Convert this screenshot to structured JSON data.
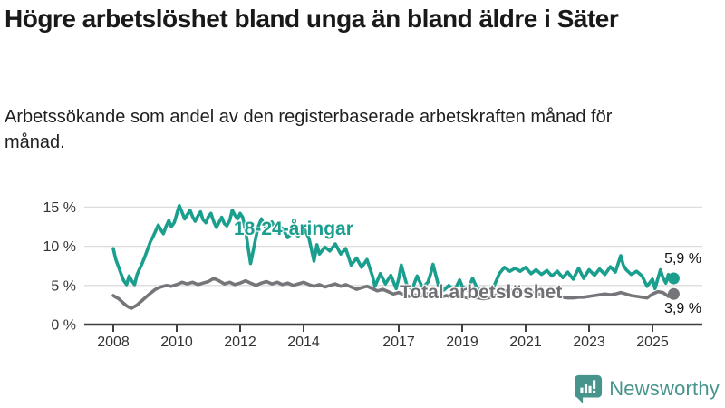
{
  "header": {
    "title": "Högre arbetslöshet bland unga än bland äldre i Säter",
    "subtitle": "Arbetssökande som andel av den registerbaserade arbetskraften månad för månad."
  },
  "footer": {
    "brand": "Newsworthy",
    "brand_color": "#47948C"
  },
  "chart_data": {
    "type": "line",
    "title": "Högre arbetslöshet bland unga än bland äldre i Säter",
    "xlabel": "",
    "ylabel": "",
    "grid": "horizontal",
    "legend_position": "inline-labels",
    "xlim": [
      2007.1,
      2026.6
    ],
    "ylim": [
      0,
      16
    ],
    "colors": {
      "youth_line": "#1A9E8D",
      "total_line": "#76767A",
      "total_label": "#707074",
      "gridline": "#dcdcdc",
      "axis": "#3f3f3f",
      "tick_text": "#333333"
    },
    "x_ticks": [
      {
        "year": 2008,
        "label": "2008"
      },
      {
        "year": 2010,
        "label": "2010"
      },
      {
        "year": 2012,
        "label": "2012"
      },
      {
        "year": 2014,
        "label": "2014"
      },
      {
        "year": 2017,
        "label": "2017"
      },
      {
        "year": 2019,
        "label": "2019"
      },
      {
        "year": 2021,
        "label": "2021"
      },
      {
        "year": 2023,
        "label": "2023"
      },
      {
        "year": 2025,
        "label": "2025"
      }
    ],
    "y_ticks": [
      {
        "value": 0,
        "label": "0 %"
      },
      {
        "value": 5,
        "label": "5 %"
      },
      {
        "value": 10,
        "label": "10 %"
      },
      {
        "value": 15,
        "label": "15 %"
      }
    ],
    "series": [
      {
        "name": "18-24-åringar",
        "color": "#1A9E8D",
        "end_label": "5,9 %",
        "end_value": 5.9,
        "points": [
          [
            2008.0,
            9.7
          ],
          [
            2008.08,
            8.3
          ],
          [
            2008.17,
            7.3
          ],
          [
            2008.25,
            6.4
          ],
          [
            2008.33,
            5.6
          ],
          [
            2008.42,
            5.1
          ],
          [
            2008.5,
            6.2
          ],
          [
            2008.58,
            5.6
          ],
          [
            2008.67,
            5.1
          ],
          [
            2008.75,
            6.4
          ],
          [
            2008.83,
            7.1
          ],
          [
            2008.92,
            7.9
          ],
          [
            2009.0,
            8.7
          ],
          [
            2009.08,
            9.6
          ],
          [
            2009.17,
            10.6
          ],
          [
            2009.25,
            11.2
          ],
          [
            2009.33,
            11.9
          ],
          [
            2009.42,
            12.7
          ],
          [
            2009.5,
            12.1
          ],
          [
            2009.58,
            11.6
          ],
          [
            2009.67,
            12.6
          ],
          [
            2009.75,
            13.3
          ],
          [
            2009.83,
            12.5
          ],
          [
            2009.92,
            13.0
          ],
          [
            2010.0,
            14.1
          ],
          [
            2010.08,
            15.2
          ],
          [
            2010.17,
            14.3
          ],
          [
            2010.25,
            13.5
          ],
          [
            2010.33,
            14.0
          ],
          [
            2010.42,
            14.6
          ],
          [
            2010.5,
            13.8
          ],
          [
            2010.58,
            13.2
          ],
          [
            2010.67,
            13.9
          ],
          [
            2010.75,
            14.4
          ],
          [
            2010.83,
            13.4
          ],
          [
            2010.92,
            13.0
          ],
          [
            2011.0,
            13.8
          ],
          [
            2011.08,
            14.2
          ],
          [
            2011.17,
            13.1
          ],
          [
            2011.25,
            12.4
          ],
          [
            2011.33,
            13.0
          ],
          [
            2011.42,
            13.7
          ],
          [
            2011.5,
            12.9
          ],
          [
            2011.58,
            12.6
          ],
          [
            2011.67,
            13.3
          ],
          [
            2011.75,
            14.6
          ],
          [
            2011.83,
            14.0
          ],
          [
            2011.92,
            13.5
          ],
          [
            2012.0,
            14.2
          ],
          [
            2012.08,
            13.7
          ],
          [
            2012.17,
            12.0
          ],
          [
            2012.25,
            9.8
          ],
          [
            2012.33,
            7.8
          ],
          [
            2012.42,
            9.6
          ],
          [
            2012.5,
            11.2
          ],
          [
            2012.58,
            12.6
          ],
          [
            2012.67,
            13.5
          ],
          [
            2012.75,
            12.8
          ],
          [
            2012.83,
            12.3
          ],
          [
            2012.92,
            12.8
          ],
          [
            2013.0,
            13.1
          ],
          [
            2013.17,
            11.8
          ],
          [
            2013.33,
            12.3
          ],
          [
            2013.5,
            11.1
          ],
          [
            2013.67,
            11.9
          ],
          [
            2013.83,
            11.3
          ],
          [
            2014.0,
            12.4
          ],
          [
            2014.17,
            11.0
          ],
          [
            2014.33,
            8.1
          ],
          [
            2014.42,
            10.2
          ],
          [
            2014.5,
            9.0
          ],
          [
            2014.67,
            9.9
          ],
          [
            2014.83,
            9.4
          ],
          [
            2015.0,
            10.3
          ],
          [
            2015.17,
            9.0
          ],
          [
            2015.33,
            9.7
          ],
          [
            2015.5,
            7.6
          ],
          [
            2015.67,
            8.5
          ],
          [
            2015.83,
            7.3
          ],
          [
            2016.0,
            8.3
          ],
          [
            2016.17,
            6.2
          ],
          [
            2016.25,
            4.9
          ],
          [
            2016.42,
            6.5
          ],
          [
            2016.58,
            5.2
          ],
          [
            2016.75,
            6.3
          ],
          [
            2016.92,
            4.6
          ],
          [
            2017.0,
            5.9
          ],
          [
            2017.08,
            7.6
          ],
          [
            2017.25,
            5.1
          ],
          [
            2017.42,
            4.5
          ],
          [
            2017.58,
            6.2
          ],
          [
            2017.75,
            4.7
          ],
          [
            2017.92,
            5.4
          ],
          [
            2018.0,
            6.4
          ],
          [
            2018.08,
            7.7
          ],
          [
            2018.25,
            5.0
          ],
          [
            2018.42,
            4.4
          ],
          [
            2018.58,
            5.0
          ],
          [
            2018.75,
            4.3
          ],
          [
            2018.92,
            5.7
          ],
          [
            2019.0,
            4.9
          ],
          [
            2019.17,
            4.4
          ],
          [
            2019.33,
            5.9
          ],
          [
            2019.5,
            4.4
          ],
          [
            2019.67,
            4.7
          ],
          [
            2019.83,
            4.2
          ],
          [
            2020.0,
            4.9
          ],
          [
            2020.17,
            6.5
          ],
          [
            2020.33,
            7.3
          ],
          [
            2020.5,
            6.8
          ],
          [
            2020.67,
            7.2
          ],
          [
            2020.83,
            6.8
          ],
          [
            2021.0,
            7.3
          ],
          [
            2021.17,
            6.5
          ],
          [
            2021.33,
            7.0
          ],
          [
            2021.5,
            6.4
          ],
          [
            2021.67,
            6.9
          ],
          [
            2021.83,
            6.2
          ],
          [
            2022.0,
            6.8
          ],
          [
            2022.17,
            6.0
          ],
          [
            2022.33,
            6.7
          ],
          [
            2022.5,
            5.8
          ],
          [
            2022.67,
            7.2
          ],
          [
            2022.83,
            5.9
          ],
          [
            2023.0,
            7.0
          ],
          [
            2023.17,
            6.3
          ],
          [
            2023.33,
            7.1
          ],
          [
            2023.5,
            6.4
          ],
          [
            2023.67,
            7.4
          ],
          [
            2023.83,
            6.7
          ],
          [
            2024.0,
            8.8
          ],
          [
            2024.08,
            7.6
          ],
          [
            2024.17,
            7.0
          ],
          [
            2024.33,
            6.4
          ],
          [
            2024.5,
            6.8
          ],
          [
            2024.67,
            6.2
          ],
          [
            2024.83,
            4.9
          ],
          [
            2025.0,
            5.8
          ],
          [
            2025.08,
            4.6
          ],
          [
            2025.17,
            5.9
          ],
          [
            2025.25,
            7.0
          ],
          [
            2025.33,
            6.0
          ],
          [
            2025.42,
            5.3
          ],
          [
            2025.5,
            6.4
          ],
          [
            2025.58,
            5.5
          ],
          [
            2025.67,
            5.9
          ]
        ]
      },
      {
        "name": "Total arbetslöshet",
        "color": "#76767A",
        "end_label": "3,9 %",
        "end_value": 3.9,
        "points": [
          [
            2008.0,
            3.7
          ],
          [
            2008.08,
            3.5
          ],
          [
            2008.17,
            3.3
          ],
          [
            2008.25,
            3.0
          ],
          [
            2008.33,
            2.7
          ],
          [
            2008.42,
            2.4
          ],
          [
            2008.5,
            2.2
          ],
          [
            2008.58,
            2.1
          ],
          [
            2008.67,
            2.3
          ],
          [
            2008.75,
            2.5
          ],
          [
            2008.83,
            2.8
          ],
          [
            2008.92,
            3.1
          ],
          [
            2009.0,
            3.4
          ],
          [
            2009.17,
            4.0
          ],
          [
            2009.33,
            4.5
          ],
          [
            2009.5,
            4.8
          ],
          [
            2009.67,
            5.0
          ],
          [
            2009.83,
            4.9
          ],
          [
            2010.0,
            5.1
          ],
          [
            2010.17,
            5.4
          ],
          [
            2010.33,
            5.2
          ],
          [
            2010.5,
            5.4
          ],
          [
            2010.67,
            5.1
          ],
          [
            2010.83,
            5.3
          ],
          [
            2011.0,
            5.5
          ],
          [
            2011.17,
            5.9
          ],
          [
            2011.33,
            5.6
          ],
          [
            2011.5,
            5.2
          ],
          [
            2011.67,
            5.4
          ],
          [
            2011.83,
            5.1
          ],
          [
            2012.0,
            5.3
          ],
          [
            2012.17,
            5.6
          ],
          [
            2012.33,
            5.3
          ],
          [
            2012.5,
            5.0
          ],
          [
            2012.67,
            5.3
          ],
          [
            2012.83,
            5.5
          ],
          [
            2013.0,
            5.2
          ],
          [
            2013.17,
            5.4
          ],
          [
            2013.33,
            5.1
          ],
          [
            2013.5,
            5.3
          ],
          [
            2013.67,
            5.0
          ],
          [
            2013.83,
            5.2
          ],
          [
            2014.0,
            5.4
          ],
          [
            2014.17,
            5.1
          ],
          [
            2014.33,
            4.9
          ],
          [
            2014.5,
            5.1
          ],
          [
            2014.67,
            4.8
          ],
          [
            2014.83,
            5.0
          ],
          [
            2015.0,
            5.2
          ],
          [
            2015.17,
            4.9
          ],
          [
            2015.33,
            5.1
          ],
          [
            2015.5,
            4.8
          ],
          [
            2015.67,
            4.5
          ],
          [
            2015.83,
            4.7
          ],
          [
            2016.0,
            4.9
          ],
          [
            2016.17,
            4.6
          ],
          [
            2016.33,
            4.3
          ],
          [
            2016.5,
            4.5
          ],
          [
            2016.67,
            4.2
          ],
          [
            2016.83,
            3.9
          ],
          [
            2017.0,
            4.1
          ],
          [
            2017.17,
            3.8
          ],
          [
            2017.33,
            3.6
          ],
          [
            2017.5,
            3.8
          ],
          [
            2017.67,
            3.6
          ],
          [
            2017.83,
            3.9
          ],
          [
            2018.0,
            4.0
          ],
          [
            2018.17,
            3.7
          ],
          [
            2018.33,
            3.5
          ],
          [
            2018.5,
            3.7
          ],
          [
            2018.67,
            3.5
          ],
          [
            2018.83,
            3.7
          ],
          [
            2019.0,
            3.6
          ],
          [
            2019.17,
            3.4
          ],
          [
            2019.33,
            3.5
          ],
          [
            2019.5,
            3.4
          ],
          [
            2019.67,
            3.3
          ],
          [
            2019.83,
            3.4
          ],
          [
            2020.0,
            3.6
          ],
          [
            2020.17,
            4.0
          ],
          [
            2020.33,
            4.3
          ],
          [
            2020.5,
            4.4
          ],
          [
            2020.67,
            4.3
          ],
          [
            2020.83,
            4.2
          ],
          [
            2021.0,
            4.2
          ],
          [
            2021.17,
            4.1
          ],
          [
            2021.33,
            4.0
          ],
          [
            2021.5,
            3.8
          ],
          [
            2021.67,
            3.7
          ],
          [
            2021.83,
            3.7
          ],
          [
            2022.0,
            3.6
          ],
          [
            2022.17,
            3.5
          ],
          [
            2022.33,
            3.4
          ],
          [
            2022.5,
            3.4
          ],
          [
            2022.67,
            3.5
          ],
          [
            2022.83,
            3.5
          ],
          [
            2023.0,
            3.6
          ],
          [
            2023.17,
            3.7
          ],
          [
            2023.33,
            3.8
          ],
          [
            2023.5,
            3.9
          ],
          [
            2023.67,
            3.8
          ],
          [
            2023.83,
            3.9
          ],
          [
            2024.0,
            4.1
          ],
          [
            2024.17,
            3.9
          ],
          [
            2024.33,
            3.7
          ],
          [
            2024.5,
            3.6
          ],
          [
            2024.67,
            3.5
          ],
          [
            2024.83,
            3.4
          ],
          [
            2025.0,
            3.9
          ],
          [
            2025.17,
            4.2
          ],
          [
            2025.33,
            4.1
          ],
          [
            2025.5,
            3.6
          ],
          [
            2025.58,
            3.7
          ],
          [
            2025.67,
            3.9
          ]
        ]
      }
    ]
  }
}
